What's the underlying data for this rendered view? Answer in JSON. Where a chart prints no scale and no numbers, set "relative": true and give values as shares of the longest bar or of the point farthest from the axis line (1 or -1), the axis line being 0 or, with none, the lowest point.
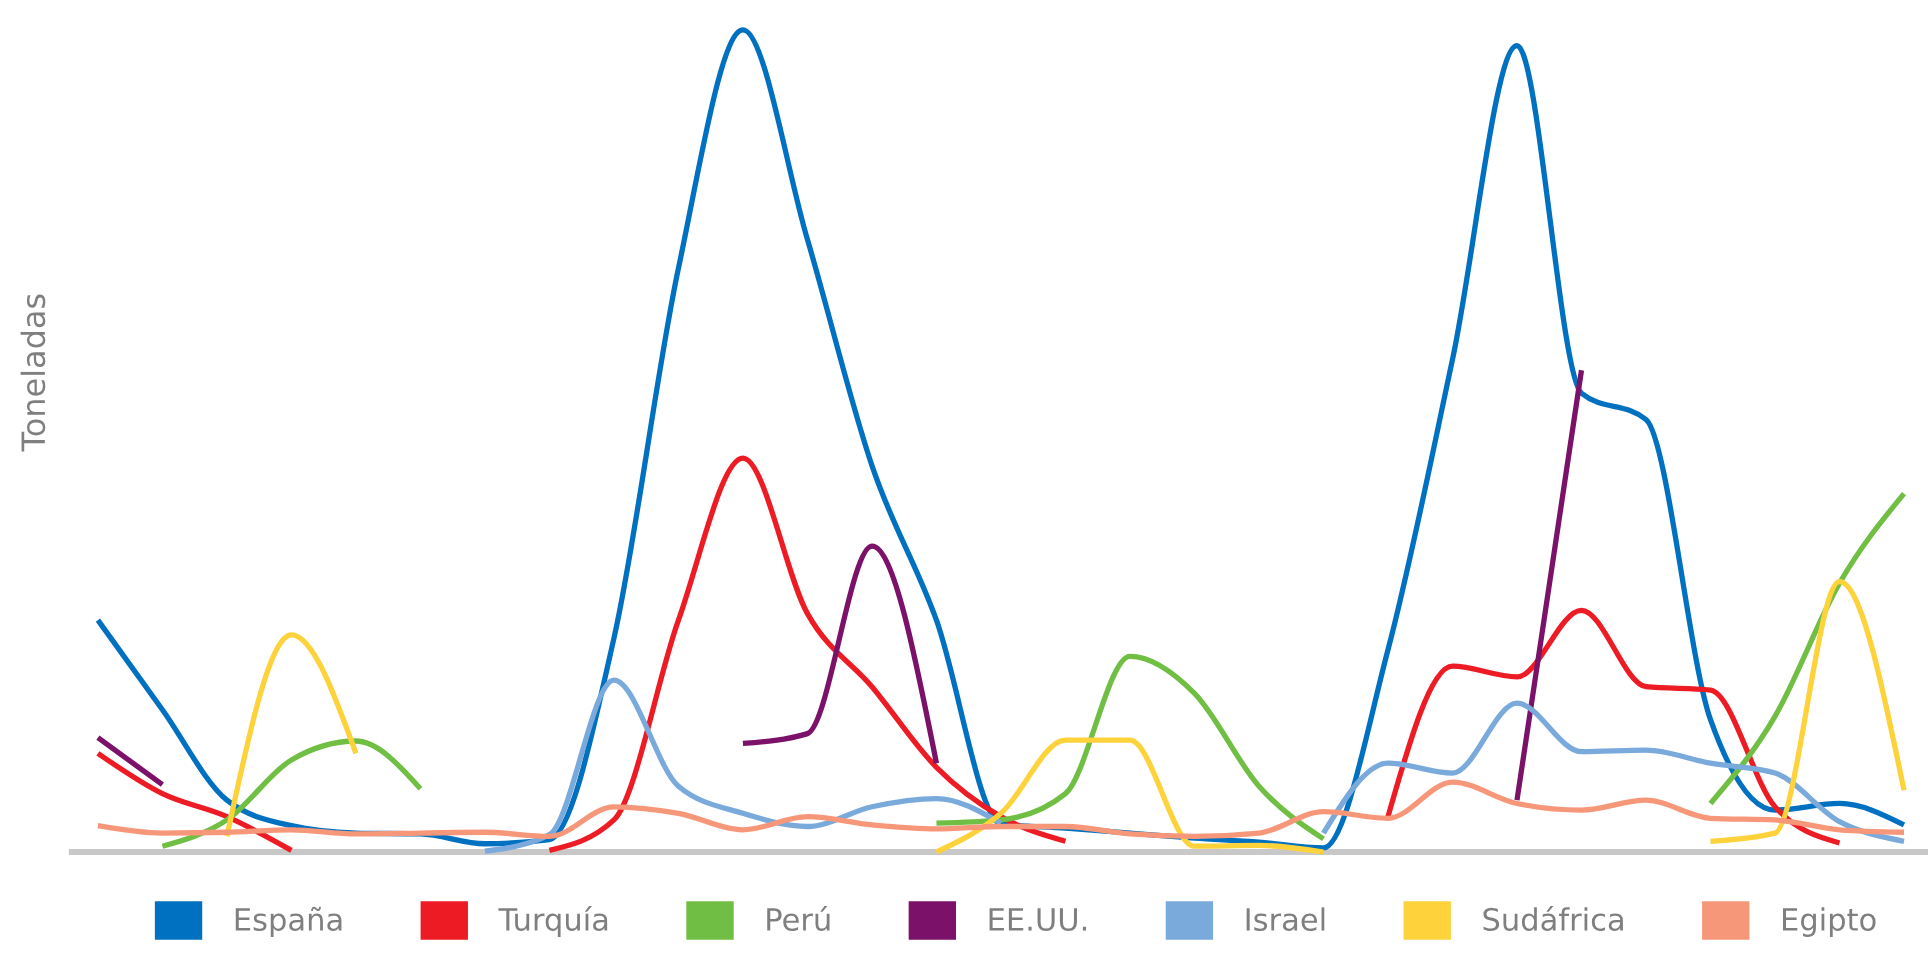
{
  "chart_data": {
    "type": "line",
    "relative": true,
    "ylabel": "Toneladas",
    "legend": "bottom",
    "grid": false,
    "marker": "none",
    "line_style": "solid",
    "categories": [
      null,
      null,
      null,
      null,
      null,
      null,
      null,
      null,
      null,
      null,
      null,
      null,
      null,
      null,
      null,
      null,
      null,
      null,
      null,
      null,
      null,
      null,
      null,
      null,
      null,
      null,
      null,
      null,
      null
    ],
    "series": [
      {
        "name": "España",
        "color": "#0070c0",
        "values": [
          0.282,
          0.173,
          0.063,
          0.032,
          0.023,
          0.022,
          0.01,
          0.015,
          0.26,
          0.71,
          1.0,
          0.745,
          0.47,
          0.282,
          0.034,
          0.029,
          0.023,
          0.017,
          0.012,
          0.005,
          0.246,
          0.599,
          0.981,
          0.558,
          0.526,
          0.161,
          0.051,
          0.059,
          0.033
        ]
      },
      {
        "name": "Turquía",
        "color": "#ed1c24",
        "values": [
          0.12,
          0.071,
          0.043,
          0.002,
          null,
          null,
          null,
          0.002,
          0.039,
          0.282,
          0.479,
          0.29,
          0.201,
          0.103,
          0.043,
          0.013,
          null,
          null,
          null,
          null,
          0.043,
          0.226,
          0.213,
          0.294,
          0.201,
          0.197,
          0.055,
          0.011,
          null
        ]
      },
      {
        "name": "Perú",
        "color": "#70bf44",
        "values": [
          null,
          0.007,
          0.039,
          0.112,
          0.135,
          0.077,
          null,
          null,
          null,
          null,
          null,
          null,
          null,
          0.035,
          0.039,
          0.071,
          0.238,
          0.193,
          0.08,
          0.016,
          null,
          null,
          null,
          null,
          null,
          0.059,
          0.165,
          0.327,
          0.436
        ]
      },
      {
        "name": "EE.UU.",
        "color": "#7b1169",
        "values": [
          0.139,
          0.082,
          null,
          null,
          null,
          null,
          null,
          null,
          null,
          null,
          0.132,
          0.144,
          0.372,
          0.108,
          null,
          null,
          null,
          null,
          null,
          null,
          null,
          null,
          0.063,
          0.586,
          null,
          null,
          null,
          null,
          null
        ]
      },
      {
        "name": "Israel",
        "color": "#7aaadc",
        "values": [
          null,
          null,
          null,
          null,
          null,
          null,
          0.001,
          0.021,
          0.209,
          0.08,
          0.047,
          0.031,
          0.055,
          0.065,
          0.035,
          null,
          null,
          null,
          null,
          0.023,
          0.108,
          0.096,
          0.181,
          0.122,
          0.124,
          0.108,
          0.096,
          0.037,
          0.013
        ]
      },
      {
        "name": "Sudáfrica",
        "color": "#fdd23a",
        "values": [
          null,
          null,
          0.019,
          0.264,
          0.12,
          null,
          null,
          null,
          null,
          null,
          null,
          null,
          null,
          0.0,
          0.047,
          0.136,
          0.136,
          0.007,
          0.008,
          0.0,
          null,
          null,
          null,
          null,
          null,
          0.013,
          0.023,
          0.329,
          0.075
        ]
      },
      {
        "name": "Egipto",
        "color": "#f7977a",
        "values": [
          0.032,
          0.023,
          0.024,
          0.027,
          0.022,
          0.023,
          0.024,
          0.019,
          0.055,
          0.047,
          0.027,
          0.043,
          0.033,
          0.028,
          0.031,
          0.031,
          0.022,
          0.019,
          0.023,
          0.049,
          0.041,
          0.085,
          0.059,
          0.051,
          0.063,
          0.041,
          0.039,
          0.027,
          0.024
        ]
      }
    ]
  }
}
